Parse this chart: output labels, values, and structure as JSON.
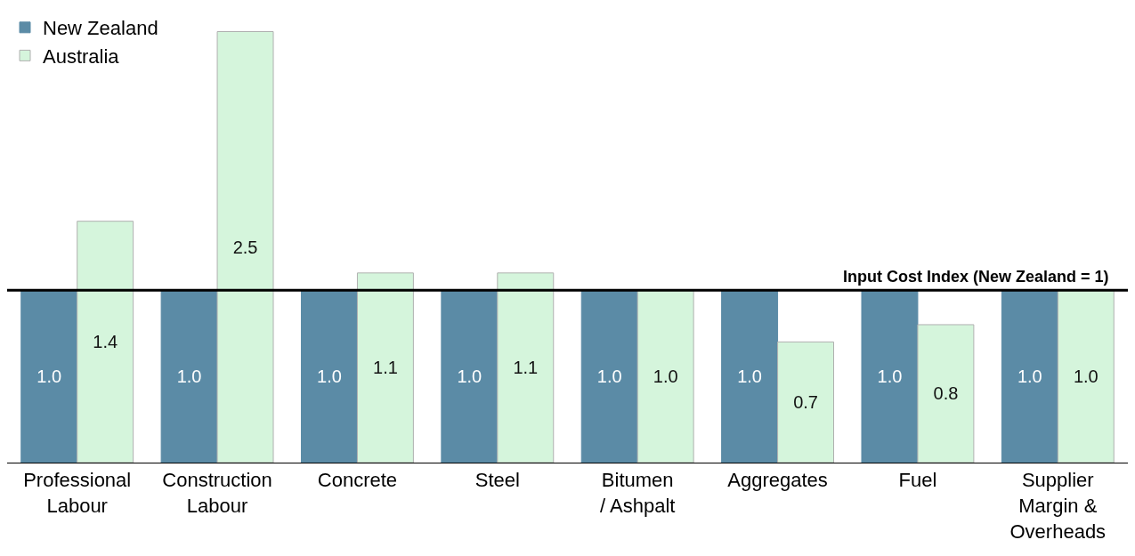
{
  "chart_data": {
    "type": "bar",
    "categories": [
      "Professional\nLabour",
      "Construction\nLabour",
      "Concrete",
      "Steel",
      "Bitumen\n/ Ashpalt",
      "Aggregates",
      "Fuel",
      "Supplier\nMargin &\nOverheads"
    ],
    "series": [
      {
        "name": "New Zealand",
        "color": "#5b8ba6",
        "values": [
          1.0,
          1.0,
          1.0,
          1.0,
          1.0,
          1.0,
          1.0,
          1.0
        ],
        "value_labels": [
          "1.0",
          "1.0",
          "1.0",
          "1.0",
          "1.0",
          "1.0",
          "1.0",
          "1.0"
        ]
      },
      {
        "name": "Australia",
        "color": "#d5f5dc",
        "values": [
          1.4,
          2.5,
          1.1,
          1.1,
          1.0,
          0.7,
          0.8,
          1.0
        ],
        "value_labels": [
          "1.4",
          "2.5",
          "1.1",
          "1.1",
          "1.0",
          "0.7",
          "0.8",
          "1.0"
        ]
      }
    ],
    "legend": "top left",
    "ref_lines": [
      {
        "axis": "y",
        "value": 1,
        "label": "Input Cost Index (New Zealand = 1)",
        "color": "#000000"
      }
    ]
  }
}
